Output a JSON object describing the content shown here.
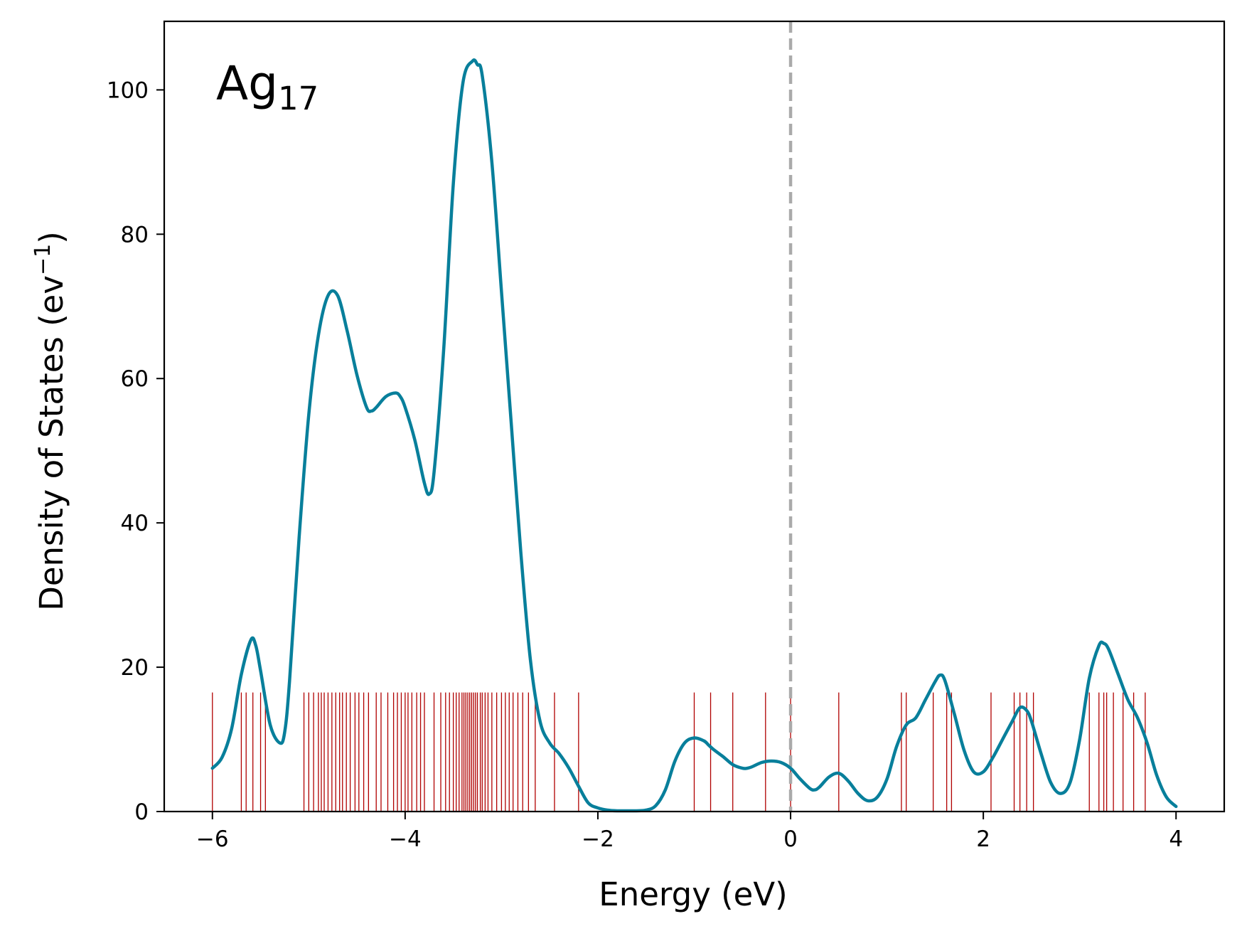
{
  "chart_data": {
    "type": "line",
    "annotation": {
      "main": "Ag",
      "sub": "17"
    },
    "xlabel": "Energy (eV)",
    "ylabel": {
      "main": "Density of States (ev",
      "sup": "−1",
      "close": ")"
    },
    "xlim": [
      -6.5,
      4.5
    ],
    "ylim": [
      0,
      109.5
    ],
    "xticks": [
      -6,
      -4,
      -2,
      0,
      2,
      4
    ],
    "xtick_labels": [
      "−6",
      "−4",
      "−2",
      "0",
      "2",
      "4"
    ],
    "yticks": [
      0,
      20,
      40,
      60,
      80,
      100
    ],
    "ytick_labels": [
      "0",
      "20",
      "40",
      "60",
      "80",
      "100"
    ],
    "grid": false,
    "fermi_level": {
      "x": 0,
      "style": "dashed",
      "color": "#aaaaaa"
    },
    "series": [
      {
        "color": "#087f9b",
        "x": [
          -6.0,
          -5.9,
          -5.8,
          -5.7,
          -5.6,
          -5.55,
          -5.5,
          -5.4,
          -5.3,
          -5.25,
          -5.2,
          -5.1,
          -5.0,
          -4.9,
          -4.8,
          -4.7,
          -4.6,
          -4.5,
          -4.4,
          -4.35,
          -4.3,
          -4.2,
          -4.1,
          -4.05,
          -4.0,
          -3.9,
          -3.8,
          -3.75,
          -3.7,
          -3.6,
          -3.5,
          -3.4,
          -3.3,
          -3.25,
          -3.2,
          -3.1,
          -3.0,
          -2.9,
          -2.8,
          -2.7,
          -2.6,
          -2.5,
          -2.4,
          -2.3,
          -2.2,
          -2.1,
          -2.0,
          -1.9,
          -1.8,
          -1.7,
          -1.6,
          -1.5,
          -1.4,
          -1.3,
          -1.2,
          -1.1,
          -1.0,
          -0.9,
          -0.85,
          -0.8,
          -0.7,
          -0.6,
          -0.5,
          -0.45,
          -0.4,
          -0.3,
          -0.2,
          -0.1,
          0.0,
          0.1,
          0.2,
          0.25,
          0.3,
          0.4,
          0.5,
          0.6,
          0.7,
          0.8,
          0.9,
          1.0,
          1.1,
          1.2,
          1.3,
          1.4,
          1.5,
          1.55,
          1.6,
          1.7,
          1.8,
          1.9,
          2.0,
          2.1,
          2.2,
          2.3,
          2.38,
          2.45,
          2.5,
          2.6,
          2.7,
          2.8,
          2.9,
          3.0,
          3.1,
          3.2,
          3.25,
          3.3,
          3.4,
          3.5,
          3.6,
          3.7,
          3.8,
          3.9,
          4.0
        ],
        "y": [
          6.0,
          7.5,
          11.5,
          19.0,
          23.8,
          23.0,
          19.5,
          12.0,
          9.5,
          11.0,
          18.0,
          38.0,
          55.0,
          66.0,
          71.5,
          71.5,
          66.5,
          60.5,
          56.0,
          55.5,
          56.0,
          57.5,
          58.0,
          57.5,
          56.0,
          51.5,
          45.5,
          44.0,
          47.0,
          64.0,
          87.0,
          101.0,
          104.0,
          103.5,
          102.0,
          90.0,
          72.0,
          54.0,
          36.0,
          21.0,
          12.5,
          9.5,
          8.0,
          6.0,
          3.5,
          1.2,
          0.5,
          0.2,
          0.1,
          0.1,
          0.1,
          0.2,
          0.8,
          3.0,
          7.0,
          9.5,
          10.2,
          9.8,
          9.2,
          8.6,
          7.6,
          6.5,
          6.0,
          6.0,
          6.2,
          6.8,
          7.0,
          6.8,
          6.0,
          4.5,
          3.2,
          3.0,
          3.4,
          4.8,
          5.3,
          4.2,
          2.5,
          1.5,
          2.0,
          4.5,
          9.0,
          12.0,
          13.0,
          15.5,
          18.0,
          18.9,
          18.2,
          13.5,
          8.5,
          5.5,
          5.5,
          7.5,
          10.0,
          12.5,
          14.4,
          14.0,
          12.5,
          8.0,
          4.0,
          2.5,
          4.0,
          10.0,
          18.5,
          23.0,
          23.3,
          22.5,
          19.0,
          15.5,
          13.0,
          9.5,
          5.0,
          2.0,
          0.7
        ]
      }
    ],
    "eigenvalues": {
      "color": "#b00000",
      "height": 16.5,
      "x": [
        -6.0,
        -5.7,
        -5.65,
        -5.58,
        -5.5,
        -5.45,
        -5.05,
        -5.0,
        -4.95,
        -4.9,
        -4.87,
        -4.84,
        -4.8,
        -4.76,
        -4.72,
        -4.68,
        -4.65,
        -4.61,
        -4.57,
        -4.52,
        -4.48,
        -4.43,
        -4.38,
        -4.3,
        -4.25,
        -4.18,
        -4.12,
        -4.08,
        -4.04,
        -4.0,
        -3.97,
        -3.93,
        -3.88,
        -3.84,
        -3.8,
        -3.7,
        -3.63,
        -3.58,
        -3.54,
        -3.5,
        -3.47,
        -3.44,
        -3.41,
        -3.39,
        -3.37,
        -3.35,
        -3.33,
        -3.31,
        -3.29,
        -3.27,
        -3.25,
        -3.22,
        -3.2,
        -3.17,
        -3.14,
        -3.1,
        -3.05,
        -3.0,
        -2.96,
        -2.92,
        -2.88,
        -2.83,
        -2.78,
        -2.72,
        -2.65,
        -2.45,
        -2.2,
        -1.0,
        -0.83,
        -0.6,
        -0.26,
        0.0,
        0.5,
        1.15,
        1.2,
        1.48,
        1.62,
        1.67,
        2.08,
        2.32,
        2.38,
        2.45,
        2.52,
        3.1,
        3.2,
        3.25,
        3.28,
        3.35,
        3.45,
        3.56,
        3.68
      ]
    }
  }
}
